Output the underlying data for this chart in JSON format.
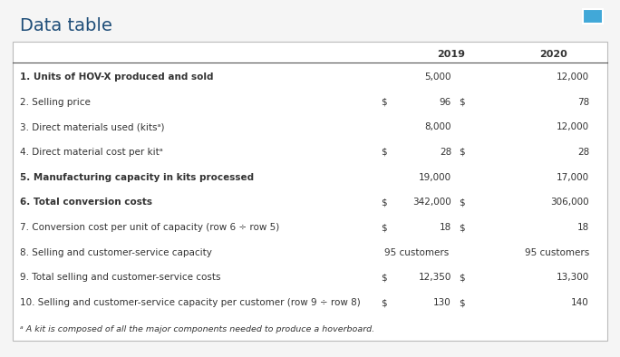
{
  "title": "Data table",
  "title_color": "#1f4e79",
  "title_fontsize": 14,
  "rows": [
    {
      "label": "1. Units of HOV-X produced and sold",
      "dollar_sign": false,
      "val2019": "5,000",
      "val2020": "12,000",
      "bold": true,
      "customers": false
    },
    {
      "label": "2. Selling price",
      "dollar_sign": true,
      "val2019": "96",
      "val2020": "78",
      "bold": false,
      "customers": false
    },
    {
      "label": "3. Direct materials used (kitsᵃ)",
      "dollar_sign": false,
      "val2019": "8,000",
      "val2020": "12,000",
      "bold": false,
      "customers": false
    },
    {
      "label": "4. Direct material cost per kitᵃ",
      "dollar_sign": true,
      "val2019": "28",
      "val2020": "28",
      "bold": false,
      "customers": false
    },
    {
      "label": "5. Manufacturing capacity in kits processed",
      "dollar_sign": false,
      "val2019": "19,000",
      "val2020": "17,000",
      "bold": true,
      "customers": false
    },
    {
      "label": "6. Total conversion costs",
      "dollar_sign": true,
      "val2019": "342,000",
      "val2020": "306,000",
      "bold": true,
      "customers": false
    },
    {
      "label": "7. Conversion cost per unit of capacity (row 6 ÷ row 5)",
      "dollar_sign": true,
      "val2019": "18",
      "val2020": "18",
      "bold": false,
      "customers": false
    },
    {
      "label": "8. Selling and customer-service capacity",
      "dollar_sign": false,
      "val2019": "95 customers",
      "val2020": "95 customers",
      "bold": false,
      "customers": true
    },
    {
      "label": "9. Total selling and customer-service costs",
      "dollar_sign": true,
      "val2019": "12,350",
      "val2020": "13,300",
      "bold": false,
      "customers": false
    },
    {
      "label": "10. Selling and customer-service capacity per customer (row 9 ÷ row 8)",
      "dollar_sign": true,
      "val2019": "130",
      "val2020": "140",
      "bold": false,
      "customers": false
    }
  ],
  "footnote": "ᵃ A kit is composed of all the major components needed to produce a hoverboard.",
  "text_color": "#333333",
  "border_color": "#bbbbbb",
  "fig_bg": "#f5f5f5",
  "table_bg": "#ffffff",
  "icon_color": "#41a8d8"
}
